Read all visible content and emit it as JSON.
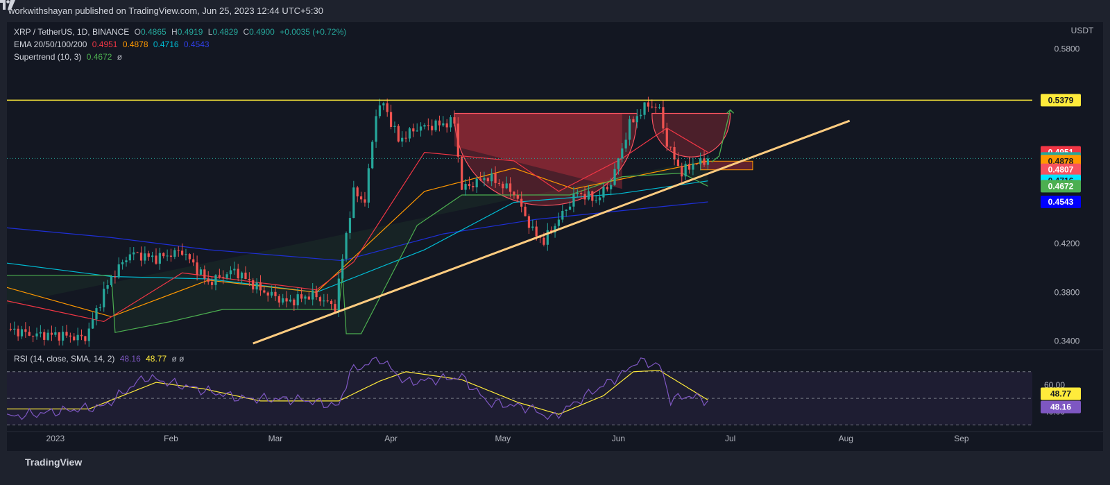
{
  "header": {
    "published": "workwithshayan published on TradingView.com, Jun 25, 2023 12:44 UTC+5:30"
  },
  "legend": {
    "symbol": "XRP / TetherUS, 1D, BINANCE",
    "o_label": "O",
    "o": "0.4865",
    "h_label": "H",
    "h": "0.4919",
    "l_label": "L",
    "l": "0.4829",
    "c_label": "C",
    "c": "0.4900",
    "change": "+0.0035 (+0.72%)",
    "ema_label": "EMA 20/50/100/200",
    "ema20": "0.4951",
    "ema50": "0.4878",
    "ema100": "0.4716",
    "ema200": "0.4543",
    "supertrend_label": "Supertrend (10, 3)",
    "supertrend": "0.4672",
    "supertrend_extra": "ø",
    "rsi_label": "RSI (14, close, SMA, 14, 2)",
    "rsi": "48.16",
    "rsi_ma": "48.77",
    "rsi_extra": "ø ø"
  },
  "footer": {
    "brand": "TradingView"
  },
  "colors": {
    "up": "#26a69a",
    "down": "#ef5350",
    "ema20": "#f23645",
    "ema50": "#ff9800",
    "ema100": "#00bcd4",
    "ema200": "#1e2fd6",
    "supertrend_up": "#4caf50",
    "supertrend_down": "#f23645",
    "resistance": "#ffeb3b",
    "trendline": "#ffcc80",
    "rsi": "#7e57c2",
    "rsi_ma": "#ffeb3b"
  },
  "chart_data": [
    {
      "type": "candlestick",
      "title": "XRP / TetherUS, 1D, BINANCE",
      "y_unit": "USDT",
      "yticks": [
        "0.5800",
        "0.5379",
        "0.4200",
        "0.3800",
        "0.3400"
      ],
      "ylim": [
        0.334,
        0.602
      ],
      "x_labels": [
        "2023",
        "Feb",
        "Mar",
        "Apr",
        "May",
        "Jun",
        "Jul",
        "Aug",
        "Sep"
      ],
      "x_label_dates": [
        "2023-01-01",
        "2023-02-01",
        "2023-03-01",
        "2023-04-01",
        "2023-05-01",
        "2023-06-01",
        "2023-07-01",
        "2023-08-01",
        "2023-09-01"
      ],
      "date_range": [
        "2022-12-19",
        "2023-09-20"
      ],
      "last_close": 0.49,
      "price_labels": [
        {
          "text": "0.5379",
          "value": 0.5379,
          "color": "#ffeb3b",
          "text_color": "#131722"
        },
        {
          "text": "0.4951",
          "value": 0.4951,
          "color": "#f23645",
          "text_color": "#ffffff"
        },
        {
          "text": "0.4900",
          "value": 0.49,
          "color": "#26a69a",
          "text_color": "#ffffff"
        },
        {
          "text": "0.4878",
          "value": 0.4878,
          "color": "#ff9800",
          "text_color": "#131722"
        },
        {
          "text": "0.4807",
          "value": 0.4807,
          "color": "#f7525f",
          "text_color": "#ffffff"
        },
        {
          "text": "0.4716",
          "value": 0.4716,
          "color": "#00e5ff",
          "text_color": "#131722"
        },
        {
          "text": "0.4672",
          "value": 0.4672,
          "color": "#4caf50",
          "text_color": "#ffffff"
        },
        {
          "text": "0.4543",
          "value": 0.4543,
          "color": "#0000ff",
          "text_color": "#ffffff"
        }
      ],
      "resistance": 0.5379,
      "trendline": [
        [
          "2023-02-23",
          0.338
        ],
        [
          "2023-08-02",
          0.521
        ]
      ],
      "price_path": [
        [
          "2022-12-19",
          0.35
        ],
        [
          "2022-12-26",
          0.345
        ],
        [
          "2023-01-02",
          0.345
        ],
        [
          "2023-01-09",
          0.342
        ],
        [
          "2023-01-14",
          0.38
        ],
        [
          "2023-01-16",
          0.392
        ],
        [
          "2023-01-21",
          0.412
        ],
        [
          "2023-01-28",
          0.408
        ],
        [
          "2023-02-04",
          0.414
        ],
        [
          "2023-02-11",
          0.388
        ],
        [
          "2023-02-18",
          0.398
        ],
        [
          "2023-02-25",
          0.382
        ],
        [
          "2023-03-04",
          0.372
        ],
        [
          "2023-03-11",
          0.378
        ],
        [
          "2023-03-17",
          0.368
        ],
        [
          "2023-03-20",
          0.428
        ],
        [
          "2023-03-22",
          0.462
        ],
        [
          "2023-03-25",
          0.455
        ],
        [
          "2023-03-28",
          0.528
        ],
        [
          "2023-03-30",
          0.535
        ],
        [
          "2023-04-03",
          0.505
        ],
        [
          "2023-04-08",
          0.515
        ],
        [
          "2023-04-14",
          0.518
        ],
        [
          "2023-04-18",
          0.52
        ],
        [
          "2023-04-20",
          0.465
        ],
        [
          "2023-04-27",
          0.475
        ],
        [
          "2023-05-04",
          0.462
        ],
        [
          "2023-05-09",
          0.43
        ],
        [
          "2023-05-12",
          0.422
        ],
        [
          "2023-05-16",
          0.44
        ],
        [
          "2023-05-21",
          0.462
        ],
        [
          "2023-05-26",
          0.456
        ],
        [
          "2023-05-30",
          0.47
        ],
        [
          "2023-06-04",
          0.518
        ],
        [
          "2023-06-09",
          0.535
        ],
        [
          "2023-06-12",
          0.53
        ],
        [
          "2023-06-14",
          0.502
        ],
        [
          "2023-06-18",
          0.478
        ],
        [
          "2023-06-21",
          0.486
        ],
        [
          "2023-06-24",
          0.487
        ],
        [
          "2023-06-25",
          0.49
        ]
      ],
      "ema20_path": [
        [
          "2022-12-19",
          0.373
        ],
        [
          "2023-01-14",
          0.356
        ],
        [
          "2023-02-04",
          0.396
        ],
        [
          "2023-03-12",
          0.382
        ],
        [
          "2023-03-22",
          0.405
        ],
        [
          "2023-04-10",
          0.495
        ],
        [
          "2023-05-04",
          0.488
        ],
        [
          "2023-05-16",
          0.463
        ],
        [
          "2023-06-02",
          0.49
        ],
        [
          "2023-06-14",
          0.515
        ],
        [
          "2023-06-25",
          0.4951
        ]
      ],
      "ema50_path": [
        [
          "2022-12-19",
          0.384
        ],
        [
          "2023-01-16",
          0.36
        ],
        [
          "2023-02-11",
          0.39
        ],
        [
          "2023-03-12",
          0.38
        ],
        [
          "2023-04-10",
          0.463
        ],
        [
          "2023-05-04",
          0.482
        ],
        [
          "2023-05-20",
          0.465
        ],
        [
          "2023-06-25",
          0.4878
        ]
      ],
      "ema100_path": [
        [
          "2022-12-19",
          0.404
        ],
        [
          "2023-01-16",
          0.393
        ],
        [
          "2023-02-11",
          0.391
        ],
        [
          "2023-03-12",
          0.38
        ],
        [
          "2023-04-10",
          0.415
        ],
        [
          "2023-05-04",
          0.454
        ],
        [
          "2023-06-01",
          0.461
        ],
        [
          "2023-06-25",
          0.4716
        ]
      ],
      "ema200_path": [
        [
          "2022-12-19",
          0.433
        ],
        [
          "2023-01-16",
          0.425
        ],
        [
          "2023-02-11",
          0.415
        ],
        [
          "2023-03-19",
          0.406
        ],
        [
          "2023-04-15",
          0.428
        ],
        [
          "2023-05-10",
          0.44
        ],
        [
          "2023-06-25",
          0.4543
        ]
      ],
      "supertrend_path": [
        [
          "2022-12-19",
          0.394
        ],
        [
          "2023-01-16",
          0.394
        ],
        [
          "2023-01-17",
          0.347
        ],
        [
          "2023-02-01",
          0.356
        ],
        [
          "2023-02-15",
          0.366
        ],
        [
          "2023-03-18",
          0.366
        ],
        [
          "2023-03-19",
          0.395
        ],
        [
          "2023-03-20",
          0.346
        ],
        [
          "2023-03-24",
          0.346
        ],
        [
          "2023-04-08",
          0.435
        ],
        [
          "2023-04-20",
          0.46
        ],
        [
          "2023-05-19",
          0.46
        ],
        [
          "2023-06-02",
          0.475
        ],
        [
          "2023-06-18",
          0.478
        ],
        [
          "2023-06-25",
          0.4672
        ]
      ]
    },
    {
      "type": "line",
      "title": "RSI (14, close, SMA, 14, 2)",
      "yticks": [
        "60.00",
        "40.00"
      ],
      "ylim": [
        25,
        85
      ],
      "levels": [
        70,
        50,
        30
      ],
      "last_rsi": 48.16,
      "last_rsi_ma": 48.77,
      "rsi_path": [
        [
          "2022-12-19",
          36
        ],
        [
          "2023-01-01",
          40
        ],
        [
          "2023-01-14",
          44
        ],
        [
          "2023-01-25",
          66
        ],
        [
          "2023-02-08",
          57
        ],
        [
          "2023-02-20",
          50
        ],
        [
          "2023-03-08",
          49
        ],
        [
          "2023-03-18",
          44
        ],
        [
          "2023-03-21",
          70
        ],
        [
          "2023-03-29",
          80
        ],
        [
          "2023-04-05",
          62
        ],
        [
          "2023-04-20",
          66
        ],
        [
          "2023-04-27",
          47
        ],
        [
          "2023-05-08",
          43
        ],
        [
          "2023-05-14",
          35
        ],
        [
          "2023-05-25",
          55
        ],
        [
          "2023-06-02",
          68
        ],
        [
          "2023-06-06",
          78
        ],
        [
          "2023-06-12",
          75
        ],
        [
          "2023-06-15",
          49
        ],
        [
          "2023-06-20",
          52
        ],
        [
          "2023-06-25",
          48.16
        ]
      ],
      "rsi_ma_path": [
        [
          "2022-12-19",
          42
        ],
        [
          "2023-01-10",
          42
        ],
        [
          "2023-01-28",
          62
        ],
        [
          "2023-02-10",
          57
        ],
        [
          "2023-02-25",
          48
        ],
        [
          "2023-03-18",
          48
        ],
        [
          "2023-03-29",
          63
        ],
        [
          "2023-04-05",
          70
        ],
        [
          "2023-04-20",
          64
        ],
        [
          "2023-05-05",
          47
        ],
        [
          "2023-05-16",
          38
        ],
        [
          "2023-05-28",
          52
        ],
        [
          "2023-06-05",
          70
        ],
        [
          "2023-06-12",
          71
        ],
        [
          "2023-06-25",
          48.77
        ]
      ]
    }
  ]
}
